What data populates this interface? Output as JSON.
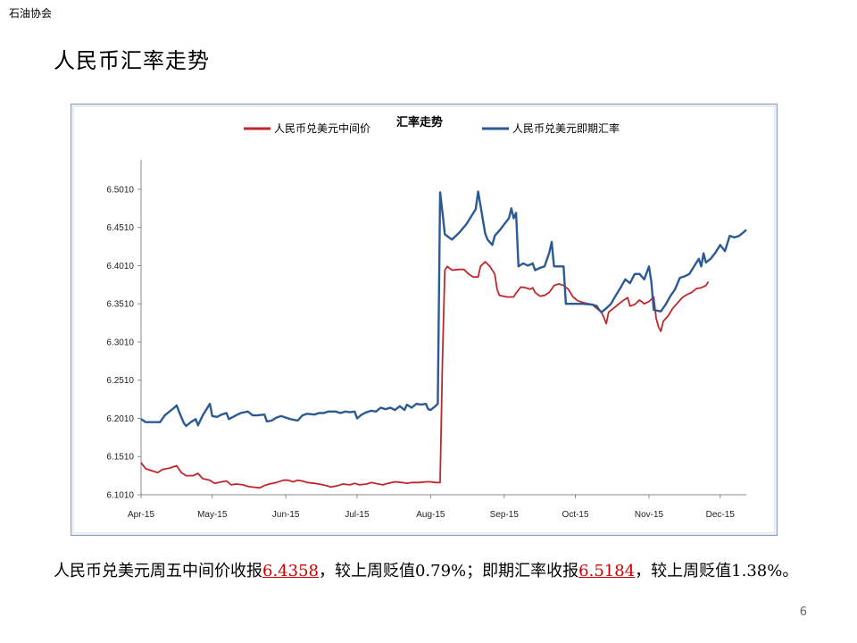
{
  "header": {
    "org": "石油协会",
    "title": "人民币汇率走势"
  },
  "footer": {
    "page": "6"
  },
  "caption": {
    "p1": "人民币兑美元周五中间价收报",
    "v1": "6.4358",
    "p2": "，较上周贬值0.79%；即期汇率收报",
    "v2": "6.5184",
    "p3": "，较上周贬值1.38%。"
  },
  "chart_data": {
    "type": "line",
    "title": "汇率走势",
    "legend_placement": "top",
    "ylim": [
      6.101,
      6.5301
    ],
    "yticks": [
      "6.1010",
      "6.1510",
      "6.2010",
      "6.2510",
      "6.3010",
      "6.3510",
      "6.4010",
      "6.4510",
      "6.5010"
    ],
    "xlim": [
      0,
      255
    ],
    "xticks": [
      {
        "label": "Apr-15",
        "x": 0
      },
      {
        "label": "May-15",
        "x": 30
      },
      {
        "label": "Jun-15",
        "x": 61
      },
      {
        "label": "Jul-15",
        "x": 91
      },
      {
        "label": "Aug-15",
        "x": 122
      },
      {
        "label": "Sep-15",
        "x": 153
      },
      {
        "label": "Oct-15",
        "x": 183
      },
      {
        "label": "Nov-15",
        "x": 214
      },
      {
        "label": "Dec-15",
        "x": 244
      }
    ],
    "grid": false,
    "series": [
      {
        "name": "人民币兑美元中间价",
        "color": "#c0272d",
        "points": [
          [
            0,
            6.143
          ],
          [
            2,
            6.135
          ],
          [
            5,
            6.132
          ],
          [
            7,
            6.13
          ],
          [
            9,
            6.134
          ],
          [
            12,
            6.136
          ],
          [
            15,
            6.139
          ],
          [
            17,
            6.13
          ],
          [
            19,
            6.126
          ],
          [
            22,
            6.126
          ],
          [
            24,
            6.129
          ],
          [
            26,
            6.122
          ],
          [
            29,
            6.12
          ],
          [
            31,
            6.116
          ],
          [
            34,
            6.118
          ],
          [
            36,
            6.119
          ],
          [
            38,
            6.114
          ],
          [
            40,
            6.115
          ],
          [
            43,
            6.114
          ],
          [
            45,
            6.112
          ],
          [
            47,
            6.111
          ],
          [
            50,
            6.11
          ],
          [
            52,
            6.113
          ],
          [
            54,
            6.115
          ],
          [
            57,
            6.117
          ],
          [
            60,
            6.12
          ],
          [
            62,
            6.12
          ],
          [
            64,
            6.118
          ],
          [
            66,
            6.12
          ],
          [
            68,
            6.119
          ],
          [
            70,
            6.117
          ],
          [
            73,
            6.116
          ],
          [
            75,
            6.115
          ],
          [
            78,
            6.113
          ],
          [
            80,
            6.111
          ],
          [
            83,
            6.113
          ],
          [
            85,
            6.115
          ],
          [
            88,
            6.114
          ],
          [
            90,
            6.116
          ],
          [
            92,
            6.114
          ],
          [
            95,
            6.115
          ],
          [
            97,
            6.117
          ],
          [
            100,
            6.115
          ],
          [
            102,
            6.114
          ],
          [
            104,
            6.116
          ],
          [
            107,
            6.118
          ],
          [
            110,
            6.117
          ],
          [
            112,
            6.116
          ],
          [
            114,
            6.117
          ],
          [
            117,
            6.117
          ],
          [
            120,
            6.118
          ],
          [
            122,
            6.118
          ],
          [
            124,
            6.117
          ],
          [
            126,
            6.117
          ],
          [
            127,
            6.28
          ],
          [
            128,
            6.395
          ],
          [
            129,
            6.4
          ],
          [
            131,
            6.395
          ],
          [
            134,
            6.396
          ],
          [
            136,
            6.396
          ],
          [
            138,
            6.39
          ],
          [
            140,
            6.386
          ],
          [
            142,
            6.386
          ],
          [
            143,
            6.4
          ],
          [
            145,
            6.406
          ],
          [
            147,
            6.4
          ],
          [
            149,
            6.39
          ],
          [
            150,
            6.37
          ],
          [
            151,
            6.362
          ],
          [
            154,
            6.36
          ],
          [
            157,
            6.36
          ],
          [
            158,
            6.365
          ],
          [
            160,
            6.373
          ],
          [
            162,
            6.372
          ],
          [
            164,
            6.37
          ],
          [
            165,
            6.372
          ],
          [
            166,
            6.366
          ],
          [
            168,
            6.361
          ],
          [
            170,
            6.362
          ],
          [
            172,
            6.366
          ],
          [
            174,
            6.375
          ],
          [
            176,
            6.377
          ],
          [
            178,
            6.375
          ],
          [
            180,
            6.37
          ],
          [
            182,
            6.36
          ],
          [
            184,
            6.355
          ],
          [
            187,
            6.352
          ],
          [
            190,
            6.35
          ],
          [
            192,
            6.345
          ],
          [
            194,
            6.34
          ],
          [
            195,
            6.333
          ],
          [
            196,
            6.325
          ],
          [
            197,
            6.34
          ],
          [
            199,
            6.345
          ],
          [
            201,
            6.35
          ],
          [
            203,
            6.355
          ],
          [
            205,
            6.359
          ],
          [
            206,
            6.348
          ],
          [
            208,
            6.35
          ],
          [
            210,
            6.356
          ],
          [
            212,
            6.351
          ],
          [
            214,
            6.354
          ],
          [
            216,
            6.36
          ],
          [
            217,
            6.332
          ],
          [
            218,
            6.321
          ],
          [
            219,
            6.315
          ],
          [
            220,
            6.328
          ],
          [
            222,
            6.335
          ],
          [
            224,
            6.345
          ],
          [
            226,
            6.352
          ],
          [
            228,
            6.359
          ],
          [
            230,
            6.363
          ],
          [
            232,
            6.366
          ],
          [
            234,
            6.371
          ],
          [
            236,
            6.372
          ],
          [
            238,
            6.375
          ],
          [
            239,
            6.38
          ]
        ]
      },
      {
        "name": "人民币兑美元即期汇率",
        "color": "#2c5a92",
        "points": [
          [
            0,
            6.2
          ],
          [
            2,
            6.196
          ],
          [
            5,
            6.196
          ],
          [
            8,
            6.196
          ],
          [
            10,
            6.205
          ],
          [
            12,
            6.21
          ],
          [
            14,
            6.215
          ],
          [
            15,
            6.218
          ],
          [
            16,
            6.21
          ],
          [
            18,
            6.195
          ],
          [
            19,
            6.191
          ],
          [
            21,
            6.196
          ],
          [
            23,
            6.2
          ],
          [
            24,
            6.192
          ],
          [
            26,
            6.205
          ],
          [
            28,
            6.215
          ],
          [
            29,
            6.22
          ],
          [
            30,
            6.204
          ],
          [
            32,
            6.203
          ],
          [
            34,
            6.206
          ],
          [
            36,
            6.208
          ],
          [
            37,
            6.2
          ],
          [
            40,
            6.205
          ],
          [
            42,
            6.208
          ],
          [
            45,
            6.21
          ],
          [
            47,
            6.205
          ],
          [
            49,
            6.205
          ],
          [
            52,
            6.206
          ],
          [
            53,
            6.197
          ],
          [
            55,
            6.198
          ],
          [
            57,
            6.202
          ],
          [
            59,
            6.204
          ],
          [
            61,
            6.202
          ],
          [
            63,
            6.2
          ],
          [
            66,
            6.198
          ],
          [
            68,
            6.205
          ],
          [
            70,
            6.207
          ],
          [
            73,
            6.206
          ],
          [
            75,
            6.208
          ],
          [
            77,
            6.208
          ],
          [
            79,
            6.21
          ],
          [
            82,
            6.21
          ],
          [
            84,
            6.208
          ],
          [
            86,
            6.21
          ],
          [
            88,
            6.209
          ],
          [
            90,
            6.21
          ],
          [
            91,
            6.201
          ],
          [
            93,
            6.206
          ],
          [
            95,
            6.209
          ],
          [
            97,
            6.211
          ],
          [
            99,
            6.21
          ],
          [
            101,
            6.215
          ],
          [
            103,
            6.213
          ],
          [
            105,
            6.215
          ],
          [
            107,
            6.212
          ],
          [
            109,
            6.217
          ],
          [
            111,
            6.212
          ],
          [
            112,
            6.219
          ],
          [
            114,
            6.215
          ],
          [
            116,
            6.22
          ],
          [
            118,
            6.219
          ],
          [
            120,
            6.22
          ],
          [
            121,
            6.213
          ],
          [
            122,
            6.212
          ],
          [
            124,
            6.217
          ],
          [
            125,
            6.22
          ],
          [
            126,
            6.497
          ],
          [
            127,
            6.47
          ],
          [
            128,
            6.442
          ],
          [
            131,
            6.435
          ],
          [
            134,
            6.444
          ],
          [
            137,
            6.455
          ],
          [
            139,
            6.465
          ],
          [
            141,
            6.475
          ],
          [
            142,
            6.498
          ],
          [
            143,
            6.48
          ],
          [
            145,
            6.443
          ],
          [
            146,
            6.435
          ],
          [
            148,
            6.428
          ],
          [
            149,
            6.44
          ],
          [
            151,
            6.447
          ],
          [
            153,
            6.455
          ],
          [
            155,
            6.463
          ],
          [
            156,
            6.476
          ],
          [
            157,
            6.463
          ],
          [
            158,
            6.47
          ],
          [
            159,
            6.4
          ],
          [
            161,
            6.404
          ],
          [
            163,
            6.401
          ],
          [
            165,
            6.404
          ],
          [
            166,
            6.395
          ],
          [
            168,
            6.398
          ],
          [
            170,
            6.4
          ],
          [
            172,
            6.418
          ],
          [
            173,
            6.432
          ],
          [
            174,
            6.4
          ],
          [
            176,
            6.4
          ],
          [
            178,
            6.4
          ],
          [
            179,
            6.351
          ],
          [
            182,
            6.351
          ],
          [
            186,
            6.351
          ],
          [
            190,
            6.35
          ],
          [
            192,
            6.348
          ],
          [
            193,
            6.343
          ],
          [
            194,
            6.34
          ],
          [
            196,
            6.345
          ],
          [
            198,
            6.351
          ],
          [
            200,
            6.362
          ],
          [
            202,
            6.372
          ],
          [
            204,
            6.383
          ],
          [
            206,
            6.378
          ],
          [
            208,
            6.39
          ],
          [
            210,
            6.39
          ],
          [
            212,
            6.383
          ],
          [
            214,
            6.4
          ],
          [
            215,
            6.38
          ],
          [
            216,
            6.343
          ],
          [
            219,
            6.341
          ],
          [
            221,
            6.35
          ],
          [
            223,
            6.361
          ],
          [
            225,
            6.37
          ],
          [
            227,
            6.385
          ],
          [
            229,
            6.387
          ],
          [
            231,
            6.39
          ],
          [
            233,
            6.4
          ],
          [
            235,
            6.41
          ],
          [
            236,
            6.4
          ],
          [
            237,
            6.417
          ],
          [
            238,
            6.405
          ],
          [
            240,
            6.41
          ],
          [
            242,
            6.418
          ],
          [
            244,
            6.428
          ],
          [
            246,
            6.42
          ],
          [
            248,
            6.44
          ],
          [
            250,
            6.438
          ],
          [
            252,
            6.44
          ],
          [
            254,
            6.445
          ],
          [
            255,
            6.448
          ]
        ]
      }
    ]
  }
}
